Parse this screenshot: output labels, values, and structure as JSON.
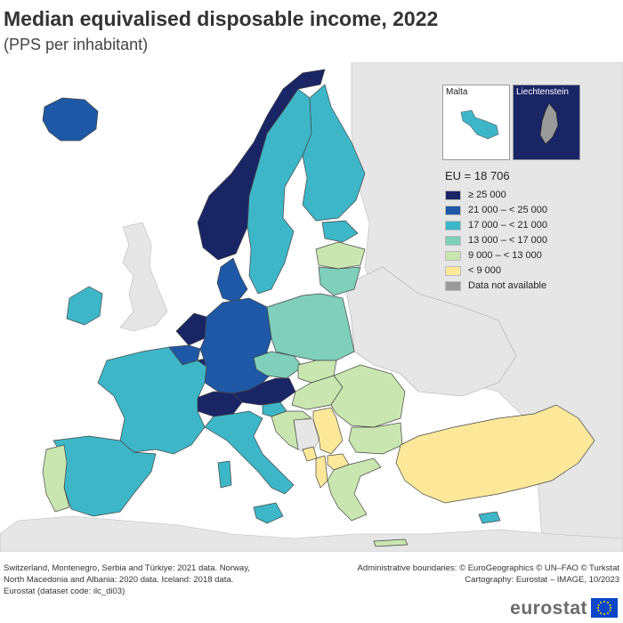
{
  "title": "Median equivalised disposable income, 2022",
  "subtitle": "(PPS per inhabitant)",
  "insets": {
    "malta": {
      "label": "Malta",
      "color": "#3db7c8"
    },
    "liechtenstein": {
      "label": "Liechtenstein",
      "color": "#9a9a9a",
      "bg": "#1a2566"
    }
  },
  "legend": {
    "title": "EU = 18 706",
    "items": [
      {
        "label": "≥ 25 000",
        "color": "#1a2566"
      },
      {
        "label": "21 000 – < 25 000",
        "color": "#1e58a6"
      },
      {
        "label": "17 000 – < 21 000",
        "color": "#3db7c8"
      },
      {
        "label": "13 000 – < 17 000",
        "color": "#7fcfba"
      },
      {
        "label": "9 000 – < 13 000",
        "color": "#c9e6b0"
      },
      {
        "label": "< 9 000",
        "color": "#fde89a"
      },
      {
        "label": "Data not available",
        "color": "#9a9a9a"
      }
    ]
  },
  "colors": {
    "non_eu": "#e6e6e6",
    "sea": "#ffffff",
    "border": "#555555"
  },
  "regions": [
    {
      "name": "Iceland",
      "class": "21 000 – < 25 000"
    },
    {
      "name": "Norway",
      "class": "≥ 25 000"
    },
    {
      "name": "Sweden",
      "class": "17 000 – < 21 000"
    },
    {
      "name": "Finland",
      "class": "17 000 – < 21 000"
    },
    {
      "name": "Estonia",
      "class": "17 000 – < 21 000"
    },
    {
      "name": "Latvia",
      "class": "9 000 – < 13 000"
    },
    {
      "name": "Lithuania",
      "class": "13 000 – < 17 000"
    },
    {
      "name": "Ireland",
      "class": "17 000 – < 21 000"
    },
    {
      "name": "Denmark",
      "class": "21 000 – < 25 000"
    },
    {
      "name": "Netherlands",
      "class": "≥ 25 000"
    },
    {
      "name": "Belgium",
      "class": "21 000 – < 25 000"
    },
    {
      "name": "Luxembourg",
      "class": "≥ 25 000"
    },
    {
      "name": "Germany",
      "class": "21 000 – < 25 000"
    },
    {
      "name": "Poland",
      "class": "13 000 – < 17 000"
    },
    {
      "name": "Czechia",
      "class": "13 000 – < 17 000"
    },
    {
      "name": "Slovakia",
      "class": "9 000 – < 13 000"
    },
    {
      "name": "Austria",
      "class": "≥ 25 000"
    },
    {
      "name": "Switzerland",
      "class": "≥ 25 000"
    },
    {
      "name": "France",
      "class": "17 000 – < 21 000"
    },
    {
      "name": "Spain",
      "class": "17 000 – < 21 000"
    },
    {
      "name": "Portugal",
      "class": "9 000 – < 13 000"
    },
    {
      "name": "Italy",
      "class": "17 000 – < 21 000"
    },
    {
      "name": "Slovenia",
      "class": "17 000 – < 21 000"
    },
    {
      "name": "Croatia",
      "class": "9 000 – < 13 000"
    },
    {
      "name": "Hungary",
      "class": "9 000 – < 13 000"
    },
    {
      "name": "Romania",
      "class": "9 000 – < 13 000"
    },
    {
      "name": "Bulgaria",
      "class": "9 000 – < 13 000"
    },
    {
      "name": "Serbia",
      "class": "< 9 000"
    },
    {
      "name": "Montenegro",
      "class": "< 9 000"
    },
    {
      "name": "Albania",
      "class": "< 9 000"
    },
    {
      "name": "North Macedonia",
      "class": "< 9 000"
    },
    {
      "name": "Greece",
      "class": "9 000 – < 13 000"
    },
    {
      "name": "Türkiye",
      "class": "< 9 000"
    },
    {
      "name": "Cyprus",
      "class": "17 000 – < 21 000"
    },
    {
      "name": "Malta",
      "class": "17 000 – < 21 000"
    }
  ],
  "footer": {
    "left_1": "Switzerland, Montenegro, Serbia and Türkiye: 2021 data. Norway,",
    "left_2": "North Macedonia and Albania: 2020 data. Iceland: 2018 data.",
    "left_3": "Eurostat (dataset code: ilc_di03)",
    "right_1": "Administrative boundaries: © EuroGeographics © UN–FAO © Turkstat",
    "right_2": "Cartography: Eurostat – IMAGE, 10/2023"
  },
  "brand": "eurostat"
}
